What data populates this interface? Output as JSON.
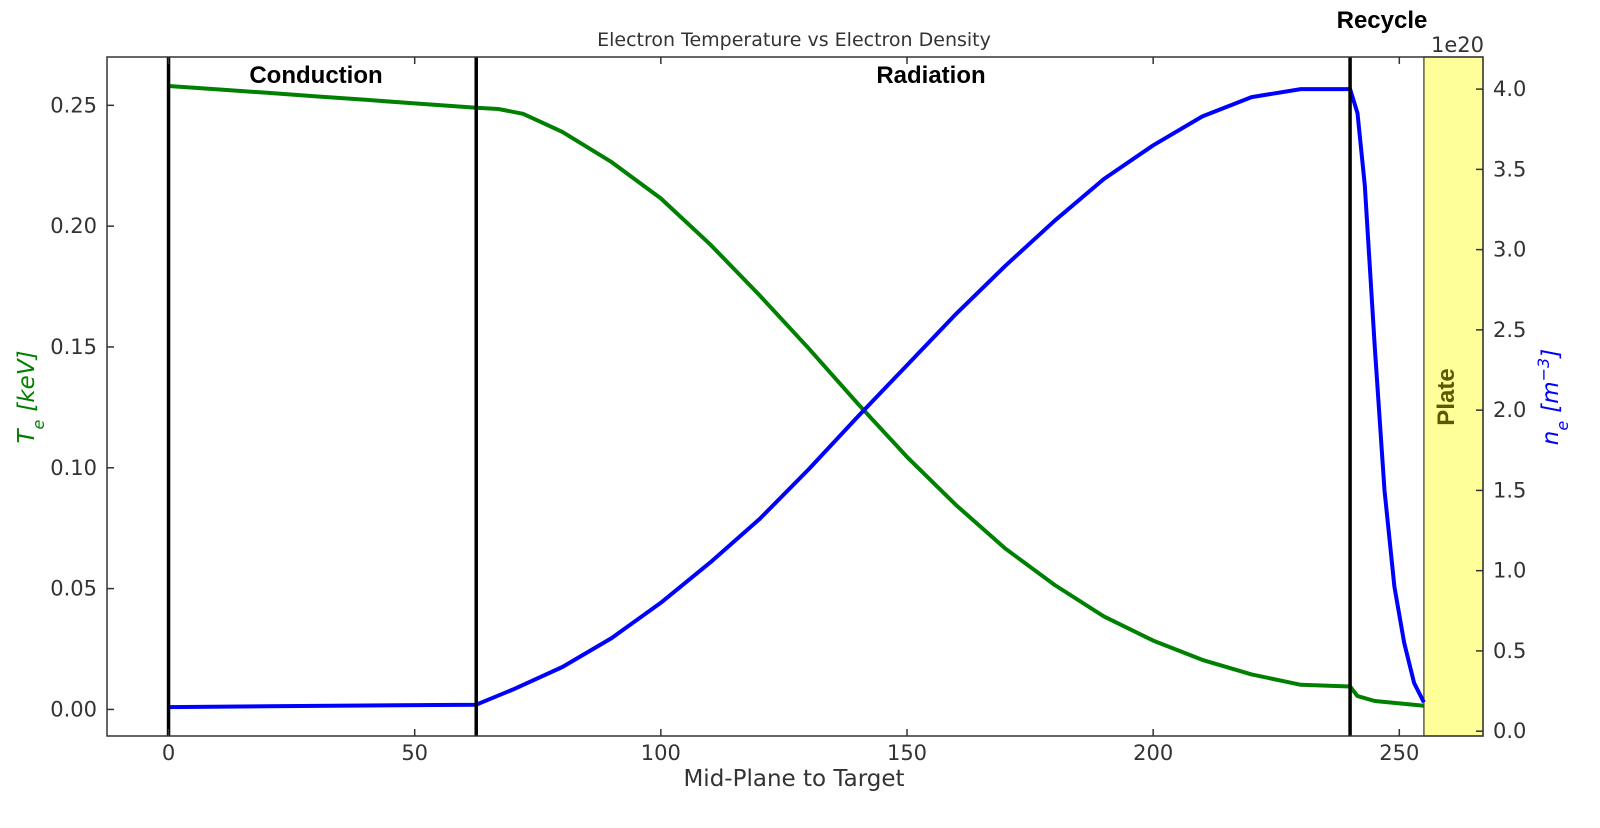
{
  "chart_data": {
    "type": "line",
    "title": "Electron Temperature vs Electron Density",
    "xlabel": "Mid-Plane to Target",
    "xlim": [
      -12.5,
      267
    ],
    "x_ticks": [
      0,
      50,
      100,
      150,
      200,
      250
    ],
    "y_left": {
      "label_base": "T",
      "label_sub": "e",
      "label_units": "[keV]",
      "color": "#008000",
      "ylim": [
        -0.011,
        0.27
      ],
      "ticks": [
        "0.00",
        "0.05",
        "0.10",
        "0.15",
        "0.20",
        "0.25"
      ],
      "tick_values": [
        0,
        0.05,
        0.1,
        0.15,
        0.2,
        0.25
      ]
    },
    "y_right": {
      "label_base": "n",
      "label_sub": "e",
      "label_units_open": "[m",
      "label_units_exp": "−3",
      "label_units_close": "]",
      "color": "#0000ff",
      "offset_text": "1e20",
      "ylim": [
        -0.03,
        4.2
      ],
      "ticks": [
        "0.0",
        "0.5",
        "1.0",
        "1.5",
        "2.0",
        "2.5",
        "3.0",
        "3.5",
        "4.0"
      ],
      "tick_values": [
        0,
        0.5,
        1.0,
        1.5,
        2.0,
        2.5,
        3.0,
        3.5,
        4.0
      ]
    },
    "series": [
      {
        "axis": "left",
        "color": "#008000",
        "x": [
          0,
          10,
          20,
          30,
          40,
          50,
          62.5,
          67,
          72,
          80,
          90,
          100,
          110,
          120,
          130,
          140,
          150,
          160,
          170,
          180,
          190,
          200,
          210,
          220,
          230,
          240,
          241.5,
          245,
          250,
          255
        ],
        "y": [
          0.258,
          0.2566,
          0.2552,
          0.2537,
          0.2523,
          0.2508,
          0.249,
          0.2485,
          0.2465,
          0.239,
          0.2265,
          0.2115,
          0.1925,
          0.1715,
          0.1495,
          0.1265,
          0.1045,
          0.0845,
          0.0665,
          0.0515,
          0.0385,
          0.0285,
          0.0205,
          0.0145,
          0.0102,
          0.0095,
          0.0055,
          0.0035,
          0.0025,
          0.0015
        ]
      },
      {
        "axis": "right",
        "color": "#0000ff",
        "x": [
          0,
          20,
          40,
          62.5,
          70,
          80,
          90,
          100,
          110,
          120,
          130,
          140,
          150,
          160,
          170,
          180,
          190,
          200,
          210,
          220,
          230,
          237,
          240,
          241.5,
          243,
          245,
          247,
          249,
          251,
          253,
          255
        ],
        "y": [
          0.15,
          0.155,
          0.16,
          0.165,
          0.26,
          0.4,
          0.58,
          0.8,
          1.05,
          1.32,
          1.63,
          1.96,
          2.28,
          2.6,
          2.9,
          3.18,
          3.44,
          3.65,
          3.83,
          3.95,
          4.0,
          4.0,
          4.0,
          3.85,
          3.4,
          2.4,
          1.5,
          0.9,
          0.55,
          0.3,
          0.18
        ]
      }
    ],
    "vertical_lines": [
      0,
      62.5,
      240
    ],
    "regions": {
      "conduction": "Conduction",
      "radiation": "Radiation",
      "recycle": "Recycle",
      "plate": "Plate"
    },
    "plate_span": [
      255,
      267
    ],
    "plate_fill": "#ffff99",
    "plate_text_color": "#5a5a00",
    "grid": false
  }
}
